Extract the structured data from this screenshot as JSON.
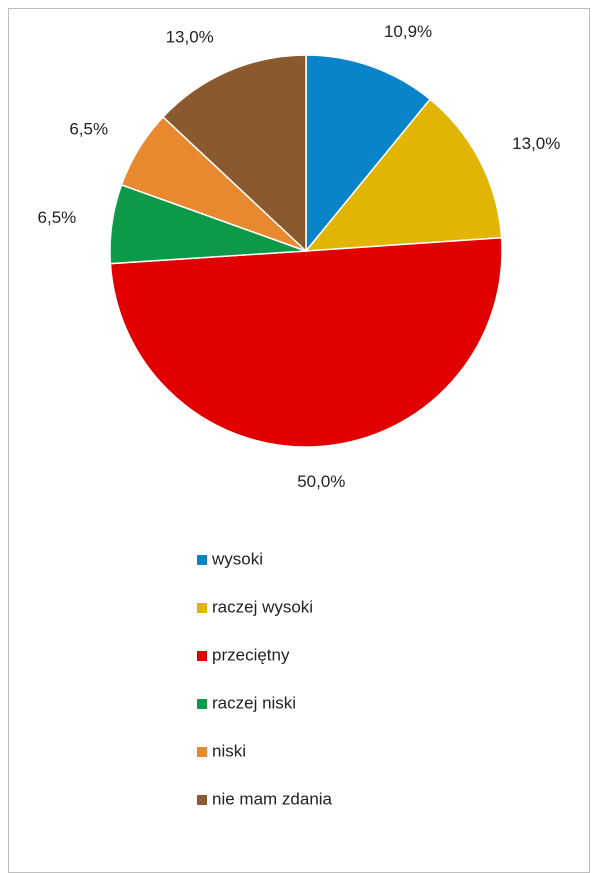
{
  "chart_data": {
    "type": "pie",
    "categories": [
      "wysoki",
      "raczej wysoki",
      "przeciętny",
      "raczej niski",
      "niski",
      "nie mam zdania"
    ],
    "values": [
      10.9,
      13.0,
      50.0,
      6.5,
      6.5,
      13.0
    ],
    "value_labels": [
      "10,9%",
      "13,0%",
      "50,0%",
      "6,5%",
      "6,5%",
      "13,0%"
    ],
    "colors": [
      "#0a84c8",
      "#e2b404",
      "#e00000",
      "#0d9a48",
      "#e8892f",
      "#8a5a2e"
    ],
    "legend": "bottom"
  }
}
